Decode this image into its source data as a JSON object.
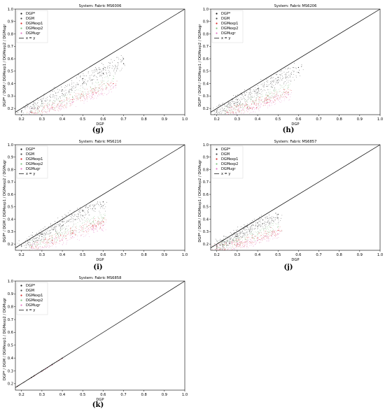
{
  "figure": {
    "panels": [
      {
        "id": "g",
        "label": "(g)",
        "title": "System: Fabric MS6006"
      },
      {
        "id": "h",
        "label": "(h)",
        "title": "System: Fabric MS6206"
      },
      {
        "id": "i",
        "label": "(i)",
        "title": "System: Fabric MS6216"
      },
      {
        "id": "j",
        "label": "(j)",
        "title": "System: Fabric MS6857"
      },
      {
        "id": "k",
        "label": "(k)",
        "title": "System: Fabric MS6858"
      }
    ],
    "xlabel": "DGP",
    "ylabel": "DGP* / DGM / DGMexp1 / DGMexp2 / DGMugr",
    "legend": [
      "DGP*",
      "DGM",
      "DGMexp1",
      "DGMexp2",
      "DGMugr",
      "x = y"
    ],
    "colors": {
      "DGP*": "#111111",
      "DGM": "#444444",
      "DGMexp1": "#d62728",
      "DGMexp2": "#7fbf7f",
      "DGMugr": "#e377c2",
      "x = y": "#000000"
    }
  },
  "chart_data": [
    {
      "type": "scatter",
      "title": "System: Fabric MS6006",
      "xlabel": "DGP",
      "ylabel": "DGP* / DGM / DGMexp1 / DGMexp2 / DGMugr",
      "xlim": [
        0.17,
        1.0
      ],
      "ylim": [
        0.15,
        1.0
      ],
      "xticks": [
        0.2,
        0.3,
        0.4,
        0.5,
        0.6,
        0.7,
        0.8,
        0.9,
        1.0
      ],
      "yticks": [
        0.2,
        0.3,
        0.4,
        0.5,
        0.6,
        0.7,
        0.8,
        0.9,
        1.0
      ],
      "legend_position": "top-left",
      "reference_line": "x = y",
      "series": [
        {
          "name": "DGP*",
          "x": [
            0.2,
            0.3,
            0.4,
            0.5,
            0.6,
            0.7
          ],
          "y": [
            0.18,
            0.26,
            0.35,
            0.44,
            0.52,
            0.6
          ]
        },
        {
          "name": "DGM",
          "x": [
            0.2,
            0.3,
            0.4,
            0.5,
            0.6,
            0.7
          ],
          "y": [
            0.17,
            0.24,
            0.32,
            0.4,
            0.48,
            0.56
          ]
        },
        {
          "name": "DGMexp1",
          "x": [
            0.25,
            0.35,
            0.45,
            0.55,
            0.65
          ],
          "y": [
            0.17,
            0.21,
            0.27,
            0.33,
            0.4
          ]
        },
        {
          "name": "DGMexp2",
          "x": [
            0.25,
            0.35,
            0.45,
            0.55,
            0.65
          ],
          "y": [
            0.18,
            0.23,
            0.29,
            0.36,
            0.44
          ]
        },
        {
          "name": "DGMugr",
          "x": [
            0.25,
            0.35,
            0.45,
            0.55,
            0.65
          ],
          "y": [
            0.17,
            0.2,
            0.25,
            0.31,
            0.37
          ]
        }
      ]
    },
    {
      "type": "scatter",
      "title": "System: Fabric MS6206",
      "xlabel": "DGP",
      "ylabel": "DGP* / DGM / DGMexp1 / DGMexp2 / DGMugr",
      "xlim": [
        0.17,
        1.0
      ],
      "ylim": [
        0.15,
        1.0
      ],
      "xticks": [
        0.2,
        0.3,
        0.4,
        0.5,
        0.6,
        0.7,
        0.8,
        0.9,
        1.0
      ],
      "yticks": [
        0.2,
        0.3,
        0.4,
        0.5,
        0.6,
        0.7,
        0.8,
        0.9,
        1.0
      ],
      "legend_position": "top-left",
      "reference_line": "x = y",
      "series": [
        {
          "name": "DGP*",
          "x": [
            0.2,
            0.3,
            0.4,
            0.5,
            0.6
          ],
          "y": [
            0.18,
            0.27,
            0.36,
            0.45,
            0.53
          ]
        },
        {
          "name": "DGM",
          "x": [
            0.2,
            0.3,
            0.4,
            0.5,
            0.6
          ],
          "y": [
            0.17,
            0.25,
            0.33,
            0.41,
            0.49
          ]
        },
        {
          "name": "DGMexp1",
          "x": [
            0.25,
            0.35,
            0.45,
            0.55
          ],
          "y": [
            0.17,
            0.21,
            0.27,
            0.33
          ]
        },
        {
          "name": "DGMexp2",
          "x": [
            0.25,
            0.35,
            0.45,
            0.55
          ],
          "y": [
            0.18,
            0.23,
            0.3,
            0.37
          ]
        },
        {
          "name": "DGMugr",
          "x": [
            0.25,
            0.35,
            0.45,
            0.55
          ],
          "y": [
            0.17,
            0.2,
            0.25,
            0.31
          ]
        }
      ]
    },
    {
      "type": "scatter",
      "title": "System: Fabric MS6216",
      "xlabel": "DGP",
      "ylabel": "DGP* / DGM / DGMexp1 / DGMexp2 / DGMugr",
      "xlim": [
        0.17,
        1.0
      ],
      "ylim": [
        0.15,
        1.0
      ],
      "xticks": [
        0.2,
        0.3,
        0.4,
        0.5,
        0.6,
        0.7,
        0.8,
        0.9,
        1.0
      ],
      "yticks": [
        0.2,
        0.3,
        0.4,
        0.5,
        0.6,
        0.7,
        0.8,
        0.9,
        1.0
      ],
      "legend_position": "top-left",
      "reference_line": "x = y",
      "series": [
        {
          "name": "DGP*",
          "x": [
            0.2,
            0.3,
            0.4,
            0.5,
            0.6
          ],
          "y": [
            0.19,
            0.28,
            0.38,
            0.47,
            0.54
          ]
        },
        {
          "name": "DGM",
          "x": [
            0.2,
            0.3,
            0.4,
            0.5,
            0.6
          ],
          "y": [
            0.18,
            0.26,
            0.35,
            0.43,
            0.51
          ]
        },
        {
          "name": "DGMexp1",
          "x": [
            0.25,
            0.35,
            0.45,
            0.55,
            0.6
          ],
          "y": [
            0.18,
            0.23,
            0.29,
            0.35,
            0.38
          ]
        },
        {
          "name": "DGMexp2",
          "x": [
            0.25,
            0.35,
            0.45,
            0.55,
            0.6
          ],
          "y": [
            0.19,
            0.25,
            0.31,
            0.38,
            0.41
          ]
        },
        {
          "name": "DGMugr",
          "x": [
            0.25,
            0.35,
            0.45,
            0.55,
            0.6
          ],
          "y": [
            0.17,
            0.21,
            0.26,
            0.32,
            0.35
          ]
        }
      ]
    },
    {
      "type": "scatter",
      "title": "System: Fabric MS6857",
      "xlabel": "DGP",
      "ylabel": "DGP* / DGM / DGMexp1 / DGMexp2 / DGMugr",
      "xlim": [
        0.17,
        1.0
      ],
      "ylim": [
        0.15,
        1.0
      ],
      "xticks": [
        0.2,
        0.3,
        0.4,
        0.5,
        0.6,
        0.7,
        0.8,
        0.9,
        1.0
      ],
      "yticks": [
        0.2,
        0.3,
        0.4,
        0.5,
        0.6,
        0.7,
        0.8,
        0.9,
        1.0
      ],
      "legend_position": "top-left",
      "reference_line": "x = y",
      "series": [
        {
          "name": "DGP*",
          "x": [
            0.2,
            0.3,
            0.4,
            0.5
          ],
          "y": [
            0.19,
            0.28,
            0.37,
            0.44
          ]
        },
        {
          "name": "DGM",
          "x": [
            0.2,
            0.3,
            0.4,
            0.5
          ],
          "y": [
            0.18,
            0.26,
            0.34,
            0.41
          ]
        },
        {
          "name": "DGMexp1",
          "x": [
            0.2,
            0.3,
            0.4,
            0.5
          ],
          "y": [
            0.17,
            0.2,
            0.25,
            0.31
          ]
        },
        {
          "name": "DGMexp2",
          "x": [
            0.2,
            0.3,
            0.4,
            0.5
          ],
          "y": [
            0.17,
            0.22,
            0.28,
            0.34
          ]
        },
        {
          "name": "DGMugr",
          "x": [
            0.2,
            0.3,
            0.4,
            0.5
          ],
          "y": [
            0.16,
            0.19,
            0.23,
            0.28
          ]
        }
      ]
    },
    {
      "type": "scatter",
      "title": "System: Fabric MS6858",
      "xlabel": "DGP",
      "ylabel": "DGP* / DGM / DGMexp1 / DGMexp2 / DGMugr",
      "xlim": [
        0.17,
        1.0
      ],
      "ylim": [
        0.15,
        1.0
      ],
      "xticks": [
        0.2,
        0.3,
        0.4,
        0.5,
        0.6,
        0.7,
        0.8,
        0.9,
        1.0
      ],
      "yticks": [
        0.2,
        0.3,
        0.4,
        0.5,
        0.6,
        0.7,
        0.8,
        0.9,
        1.0
      ],
      "legend_position": "top-left",
      "reference_line": "x = y",
      "series": [
        {
          "name": "DGP*",
          "x": [
            0.18,
            0.25,
            0.3,
            0.35,
            0.4
          ],
          "y": [
            0.18,
            0.25,
            0.3,
            0.35,
            0.4
          ]
        },
        {
          "name": "DGM",
          "x": [
            0.18,
            0.25,
            0.3,
            0.35,
            0.4
          ],
          "y": [
            0.18,
            0.25,
            0.3,
            0.35,
            0.4
          ]
        },
        {
          "name": "DGMexp1",
          "x": [
            0.18,
            0.25,
            0.3,
            0.35,
            0.4
          ],
          "y": [
            0.18,
            0.249,
            0.298,
            0.348,
            0.398
          ]
        },
        {
          "name": "DGMexp2",
          "x": [
            0.18,
            0.25,
            0.3,
            0.35,
            0.4
          ],
          "y": [
            0.18,
            0.25,
            0.3,
            0.35,
            0.4
          ]
        },
        {
          "name": "DGMugr",
          "x": [
            0.18,
            0.25,
            0.3,
            0.35,
            0.4
          ],
          "y": [
            0.18,
            0.248,
            0.297,
            0.346,
            0.396
          ]
        }
      ]
    }
  ]
}
